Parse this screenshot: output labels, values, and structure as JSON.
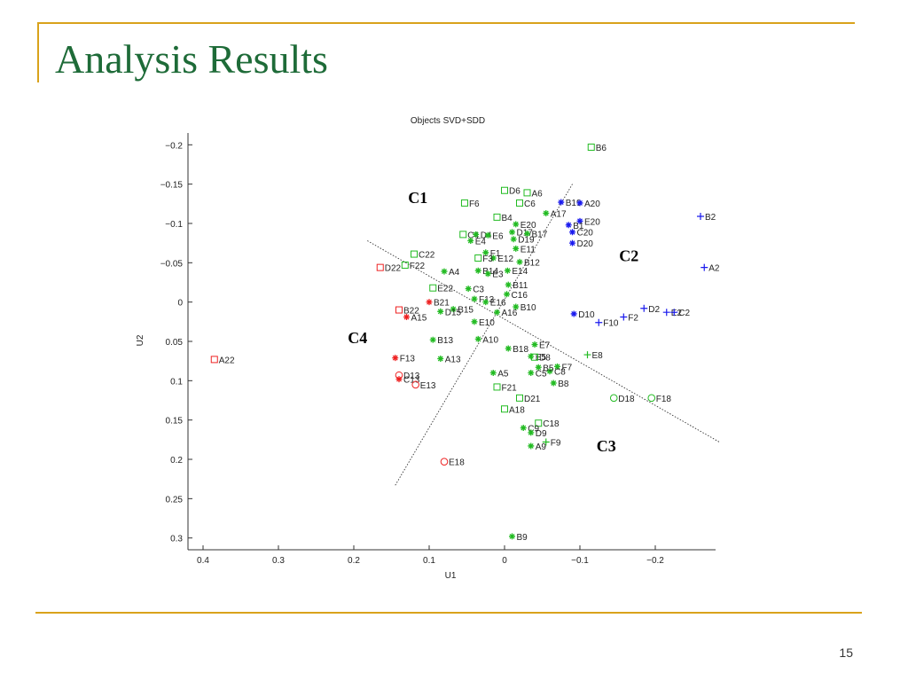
{
  "slide": {
    "title": "Analysis Results",
    "page_number": "15"
  },
  "colors": {
    "accent_line": "#d9a21b",
    "title": "#1e6b38",
    "C1": "#22bb22",
    "C2": "#1a1aee",
    "C3": "#22bb22",
    "C4": "#ee2222"
  },
  "chart_data": {
    "type": "scatter",
    "title": "Objects SVD+SDD",
    "xlabel": "U1",
    "ylabel": "U2",
    "xlim": [
      0.42,
      -0.28
    ],
    "ylim": [
      -0.215,
      0.315
    ],
    "x_reversed": true,
    "y_reversed": true,
    "xticks": [
      0.4,
      0.3,
      0.2,
      0.1,
      0,
      -0.1,
      -0.2
    ],
    "xtick_labels": [
      "0.4",
      "0.3",
      "0.2",
      "0.1",
      "0",
      "−0.1",
      "−0.2"
    ],
    "yticks": [
      -0.2,
      -0.15,
      -0.1,
      -0.05,
      0,
      0.05,
      0.1,
      0.15,
      0.2,
      0.25,
      0.3
    ],
    "ytick_labels": [
      "−0.2",
      "−0.15",
      "−0.1",
      "−0.05",
      "0",
      "0.05",
      "0.1",
      "0.15",
      "0.2",
      "0.25",
      "0.3"
    ],
    "cluster_labels": [
      {
        "text": "C1",
        "x": 0.115,
        "y": -0.126
      },
      {
        "text": "C2",
        "x": -0.165,
        "y": -0.052
      },
      {
        "text": "C3",
        "x": -0.135,
        "y": 0.19
      },
      {
        "text": "C4",
        "x": 0.195,
        "y": 0.052
      }
    ],
    "boundaries": [
      {
        "from": [
          0.182,
          -0.078
        ],
        "to": [
          -0.285,
          0.178
        ]
      },
      {
        "from": [
          0.145,
          0.233
        ],
        "to": [
          -0.09,
          -0.15
        ]
      }
    ],
    "series": [
      {
        "name": "C1",
        "color": "#22bb22",
        "points": [
          {
            "label": "B6",
            "x": -0.115,
            "y": -0.197,
            "m": "square"
          },
          {
            "label": "D6",
            "x": 0.0,
            "y": -0.142,
            "m": "square"
          },
          {
            "label": "A6",
            "x": -0.03,
            "y": -0.139,
            "m": "square"
          },
          {
            "label": "F6",
            "x": 0.053,
            "y": -0.126,
            "m": "square"
          },
          {
            "label": "C6",
            "x": -0.02,
            "y": -0.126,
            "m": "square"
          },
          {
            "label": "B4",
            "x": 0.01,
            "y": -0.108,
            "m": "square"
          },
          {
            "label": "A17",
            "x": -0.055,
            "y": -0.113,
            "m": "star"
          },
          {
            "label": "E20",
            "x": -0.015,
            "y": -0.099,
            "m": "star"
          },
          {
            "label": "C4",
            "x": 0.055,
            "y": -0.086,
            "m": "square"
          },
          {
            "label": "D4",
            "x": 0.038,
            "y": -0.086,
            "m": "star"
          },
          {
            "label": "E6",
            "x": 0.022,
            "y": -0.085,
            "m": "star"
          },
          {
            "label": "D17",
            "x": -0.01,
            "y": -0.089,
            "m": "star"
          },
          {
            "label": "B17",
            "x": -0.03,
            "y": -0.087,
            "m": "star"
          },
          {
            "label": "D19",
            "x": -0.012,
            "y": -0.08,
            "m": "star"
          },
          {
            "label": "E4",
            "x": 0.045,
            "y": -0.078,
            "m": "star"
          },
          {
            "label": "E11",
            "x": -0.015,
            "y": -0.068,
            "m": "star"
          },
          {
            "label": "F1",
            "x": 0.025,
            "y": -0.063,
            "m": "star"
          },
          {
            "label": "E12",
            "x": 0.015,
            "y": -0.056,
            "m": "star"
          },
          {
            "label": "F3",
            "x": 0.035,
            "y": -0.056,
            "m": "square"
          },
          {
            "label": "B12",
            "x": -0.02,
            "y": -0.051,
            "m": "star"
          },
          {
            "label": "C22",
            "x": 0.12,
            "y": -0.061,
            "m": "square"
          },
          {
            "label": "F22",
            "x": 0.132,
            "y": -0.047,
            "m": "square"
          },
          {
            "label": "A4",
            "x": 0.08,
            "y": -0.039,
            "m": "star"
          },
          {
            "label": "B14",
            "x": 0.035,
            "y": -0.04,
            "m": "star"
          },
          {
            "label": "E3",
            "x": 0.022,
            "y": -0.036,
            "m": "star"
          },
          {
            "label": "E14",
            "x": -0.004,
            "y": -0.04,
            "m": "star"
          },
          {
            "label": "B11",
            "x": -0.005,
            "y": -0.022,
            "m": "star"
          },
          {
            "label": "E22",
            "x": 0.095,
            "y": -0.018,
            "m": "square"
          },
          {
            "label": "C3",
            "x": 0.048,
            "y": -0.017,
            "m": "star"
          },
          {
            "label": "C16",
            "x": -0.003,
            "y": -0.01,
            "m": "star"
          },
          {
            "label": "F13b",
            "x": 0.04,
            "y": -0.004,
            "m": "star"
          },
          {
            "label": "E16",
            "x": 0.025,
            "y": 0.0,
            "m": "star"
          },
          {
            "label": "B10",
            "x": -0.015,
            "y": 0.006,
            "m": "star"
          },
          {
            "label": "A16",
            "x": 0.01,
            "y": 0.013,
            "m": "star"
          },
          {
            "label": "B15",
            "x": 0.068,
            "y": 0.009,
            "m": "star"
          },
          {
            "label": "E10",
            "x": 0.04,
            "y": 0.025,
            "m": "star"
          }
        ]
      },
      {
        "name": "C2",
        "color": "#1a1aee",
        "points": [
          {
            "label": "B19",
            "x": -0.075,
            "y": -0.127,
            "m": "star"
          },
          {
            "label": "A20",
            "x": -0.1,
            "y": -0.126,
            "m": "star"
          },
          {
            "label": "B2",
            "x": -0.26,
            "y": -0.109,
            "m": "plus"
          },
          {
            "label": "E20",
            "x": -0.1,
            "y": -0.103,
            "m": "star"
          },
          {
            "label": "B1",
            "x": -0.085,
            "y": -0.098,
            "m": "star"
          },
          {
            "label": "C20",
            "x": -0.09,
            "y": -0.089,
            "m": "star"
          },
          {
            "label": "D20",
            "x": -0.09,
            "y": -0.075,
            "m": "star"
          },
          {
            "label": "A2",
            "x": -0.265,
            "y": -0.044,
            "m": "plus"
          },
          {
            "label": "D10",
            "x": -0.092,
            "y": 0.015,
            "m": "star"
          },
          {
            "label": "D2",
            "x": -0.185,
            "y": 0.008,
            "m": "plus"
          },
          {
            "label": "E2",
            "x": -0.215,
            "y": 0.013,
            "m": "plus"
          },
          {
            "label": "C2",
            "x": -0.225,
            "y": 0.013,
            "m": "plus"
          },
          {
            "label": "F2",
            "x": -0.158,
            "y": 0.019,
            "m": "plus"
          },
          {
            "label": "F10",
            "x": -0.125,
            "y": 0.026,
            "m": "plus"
          }
        ]
      },
      {
        "name": "C3",
        "color": "#22bb22",
        "points": [
          {
            "label": "E7",
            "x": -0.04,
            "y": 0.054,
            "m": "star"
          },
          {
            "label": "B18",
            "x": -0.005,
            "y": 0.059,
            "m": "star"
          },
          {
            "label": "E8",
            "x": -0.11,
            "y": 0.067,
            "m": "plus"
          },
          {
            "label": "E5",
            "x": -0.035,
            "y": 0.069,
            "m": "star"
          },
          {
            "label": "D8",
            "x": -0.04,
            "y": 0.07,
            "m": "square"
          },
          {
            "label": "F7",
            "x": -0.07,
            "y": 0.082,
            "m": "star"
          },
          {
            "label": "C8",
            "x": -0.06,
            "y": 0.088,
            "m": "star"
          },
          {
            "label": "B5",
            "x": -0.045,
            "y": 0.083,
            "m": "star"
          },
          {
            "label": "A5",
            "x": 0.015,
            "y": 0.09,
            "m": "star"
          },
          {
            "label": "C5",
            "x": -0.035,
            "y": 0.09,
            "m": "star"
          },
          {
            "label": "B8",
            "x": -0.065,
            "y": 0.103,
            "m": "star"
          },
          {
            "label": "F21",
            "x": 0.01,
            "y": 0.108,
            "m": "square"
          },
          {
            "label": "D21",
            "x": -0.02,
            "y": 0.122,
            "m": "square"
          },
          {
            "label": "D18",
            "x": -0.145,
            "y": 0.122,
            "m": "circle"
          },
          {
            "label": "F18",
            "x": -0.195,
            "y": 0.122,
            "m": "circle"
          },
          {
            "label": "A18",
            "x": 0.0,
            "y": 0.136,
            "m": "square"
          },
          {
            "label": "C18",
            "x": -0.045,
            "y": 0.154,
            "m": "square"
          },
          {
            "label": "C9",
            "x": -0.025,
            "y": 0.16,
            "m": "star"
          },
          {
            "label": "D9",
            "x": -0.035,
            "y": 0.166,
            "m": "star"
          },
          {
            "label": "F9",
            "x": -0.055,
            "y": 0.178,
            "m": "plus"
          },
          {
            "label": "A9",
            "x": -0.035,
            "y": 0.183,
            "m": "star"
          },
          {
            "label": "B9",
            "x": -0.01,
            "y": 0.298,
            "m": "star"
          }
        ]
      },
      {
        "name": "C4",
        "color": "#ee2222",
        "points": [
          {
            "label": "D22",
            "x": 0.165,
            "y": -0.044,
            "m": "square"
          },
          {
            "label": "B21",
            "x": 0.1,
            "y": 0.0,
            "m": "star"
          },
          {
            "label": "B22",
            "x": 0.14,
            "y": 0.01,
            "m": "square"
          },
          {
            "label": "A15",
            "x": 0.13,
            "y": 0.019,
            "m": "star"
          },
          {
            "label": "A22",
            "x": 0.385,
            "y": 0.073,
            "m": "square"
          },
          {
            "label": "F13",
            "x": 0.145,
            "y": 0.071,
            "m": "star"
          },
          {
            "label": "D13",
            "x": 0.14,
            "y": 0.093,
            "m": "circle"
          },
          {
            "label": "C13",
            "x": 0.14,
            "y": 0.098,
            "m": "star"
          },
          {
            "label": "E13",
            "x": 0.118,
            "y": 0.105,
            "m": "circle"
          },
          {
            "label": "E18",
            "x": 0.08,
            "y": 0.203,
            "m": "circle"
          }
        ]
      },
      {
        "name": "C4-mixed",
        "color": "#22bb22",
        "points": [
          {
            "label": "B13",
            "x": 0.095,
            "y": 0.048,
            "m": "star"
          },
          {
            "label": "A13",
            "x": 0.085,
            "y": 0.072,
            "m": "star"
          },
          {
            "label": "A10",
            "x": 0.035,
            "y": 0.047,
            "m": "star"
          },
          {
            "label": "D15",
            "x": 0.085,
            "y": 0.012,
            "m": "star"
          }
        ]
      }
    ]
  }
}
